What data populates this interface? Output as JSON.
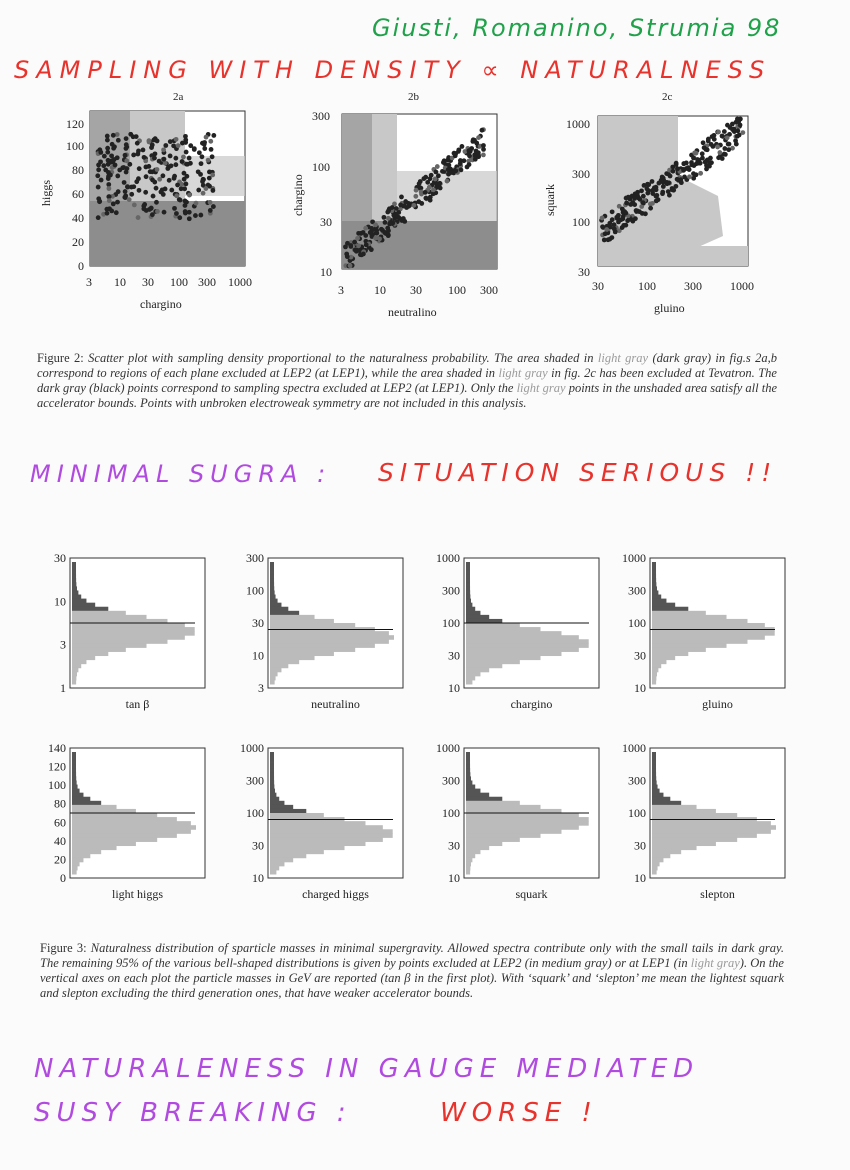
{
  "annotations": {
    "authors": "Giusti, Romanino, Strumia 98",
    "title": "SAMPLING WITH DENSITY ∝ NATURALNESS",
    "msugra_left": "MINIMAL SUGRA :",
    "msugra_right": "SITUATION SERIOUS !!",
    "gauge_line1": "NATURALENESS IN GAUGE MEDIATED",
    "gauge_line2_a": "SUSY BREAKING :",
    "gauge_line2_b": "WORSE !"
  },
  "colors": {
    "red_ink": "#e8322c",
    "green_ink": "#1fa24a",
    "purple_ink": "#b14be0"
  },
  "figure2": {
    "caption": {
      "label": "Figure 2:",
      "t1": "Scatter plot with sampling density proportional to the naturalness probability. The area shaded in",
      "lg1": "light gray",
      "t2": "(dark gray) in fig.s 2a,b correspond to regions of each plane excluded at LEP2 (at LEP1), while the area shaded in",
      "lg2": "light gray",
      "t3": "in fig. 2c has been excluded at Tevatron. The dark gray (black) points correspond to sampling spectra excluded at LEP2 (at LEP1). Only the",
      "lg3": "light gray",
      "t4": "points in the unshaded area satisfy all the accelerator bounds. Points with unbroken electroweak symmetry are not included in this analysis."
    },
    "panels": [
      {
        "sub": "2a",
        "xlabel": "chargino",
        "ylabel": "higgs",
        "xticks": [
          "3",
          "10",
          "30",
          "100",
          "300",
          "1000"
        ],
        "yticks": [
          "0",
          "20",
          "40",
          "60",
          "80",
          "100",
          "120"
        ]
      },
      {
        "sub": "2b",
        "xlabel": "neutralino",
        "ylabel": "chargino",
        "xticks": [
          "3",
          "10",
          "30",
          "100",
          "300"
        ],
        "yticks": [
          "10",
          "30",
          "100",
          "300"
        ]
      },
      {
        "sub": "2c",
        "xlabel": "gluino",
        "ylabel": "squark",
        "xticks": [
          "30",
          "100",
          "300",
          "1000"
        ],
        "yticks": [
          "30",
          "100",
          "300",
          "1000"
        ]
      }
    ]
  },
  "figure3": {
    "caption": {
      "label": "Figure 3:",
      "t1": "Naturalness distribution of sparticle masses in minimal supergravity. Allowed spectra contribute only with the small tails in dark gray. The remaining 95% of the various bell-shaped distributions is given by points excluded at LEP2 (in medium gray) or at LEP1 (in",
      "lg1": "light gray",
      "t2": "). On the vertical axes on each plot the particle masses in GeV are reported (tan β in the first plot). With ‘squark’ and ‘slepton’ me mean the lightest squark and slepton excluding the third generation ones, that have weaker accelerator bounds."
    },
    "panels": [
      {
        "xlabel": "tan β",
        "yticks": [
          "1",
          "3",
          "10",
          "30"
        ]
      },
      {
        "xlabel": "neutralino",
        "yticks": [
          "3",
          "10",
          "30",
          "100",
          "300"
        ]
      },
      {
        "xlabel": "chargino",
        "yticks": [
          "10",
          "30",
          "100",
          "300",
          "1000"
        ]
      },
      {
        "xlabel": "gluino",
        "yticks": [
          "10",
          "30",
          "100",
          "300",
          "1000"
        ]
      },
      {
        "xlabel": "light  higgs",
        "yticks": [
          "0",
          "20",
          "40",
          "60",
          "80",
          "100",
          "120",
          "140"
        ]
      },
      {
        "xlabel": "charged higgs",
        "yticks": [
          "10",
          "30",
          "100",
          "300",
          "1000"
        ]
      },
      {
        "xlabel": "squark",
        "yticks": [
          "10",
          "30",
          "100",
          "300",
          "1000"
        ]
      },
      {
        "xlabel": "slepton",
        "yticks": [
          "10",
          "30",
          "100",
          "300",
          "1000"
        ]
      }
    ]
  }
}
